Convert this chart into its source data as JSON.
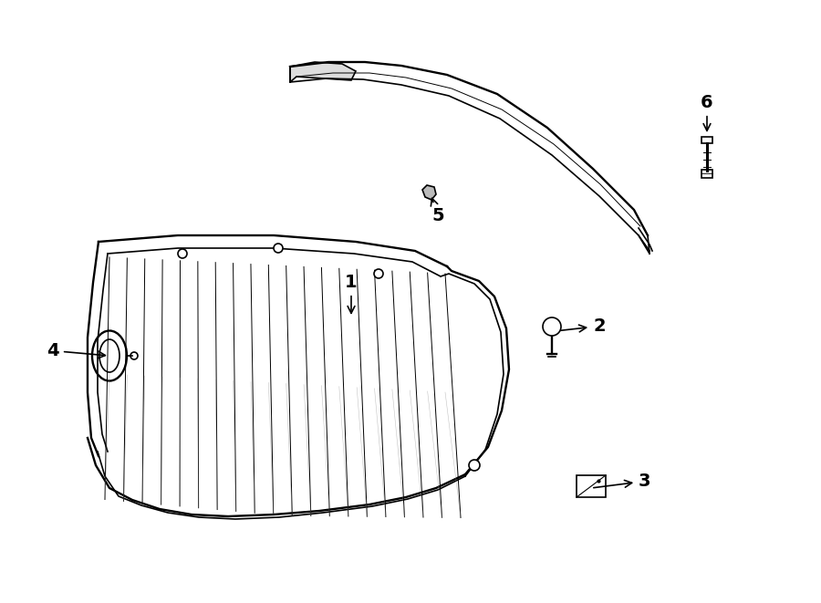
{
  "bg_color": "#ffffff",
  "line_color": "#000000",
  "parts": [
    {
      "id": 1,
      "label": "1"
    },
    {
      "id": 2,
      "label": "2"
    },
    {
      "id": 3,
      "label": "3"
    },
    {
      "id": 4,
      "label": "4"
    },
    {
      "id": 5,
      "label": "5"
    },
    {
      "id": 6,
      "label": "6"
    }
  ]
}
